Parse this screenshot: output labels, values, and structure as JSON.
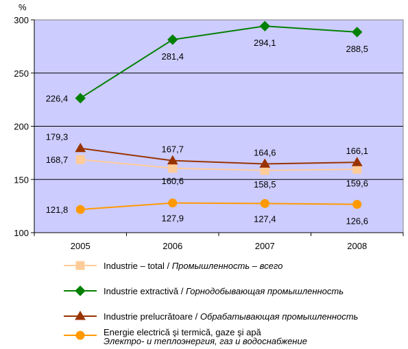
{
  "chart_data": {
    "type": "line",
    "ylabel": "%",
    "ylim": [
      100,
      300
    ],
    "yticks": [
      100,
      150,
      200,
      250,
      300
    ],
    "categories": [
      "2005",
      "2006",
      "2007",
      "2008"
    ],
    "grid": true,
    "legend_position": "bottom",
    "plot_background": "#ccccff",
    "series": [
      {
        "name_ro": "Industrie – total / ",
        "name_ru": "Промышленность – всего",
        "values": [
          168.7,
          160.6,
          158.5,
          159.6
        ],
        "labels": [
          "168,7",
          "160,6",
          "158,5",
          "159,6"
        ],
        "color": "#ffcc99",
        "marker": "square"
      },
      {
        "name_ro": "Industrie extractivă / ",
        "name_ru": "Горнодобывающая промышленность",
        "values": [
          226.4,
          281.4,
          294.1,
          288.5
        ],
        "labels": [
          "226,4",
          "281,4",
          "294,1",
          "288,5"
        ],
        "color": "#008000",
        "marker": "diamond"
      },
      {
        "name_ro": "Industrie prelucrătoare / ",
        "name_ru": "Обрабатывающая промышленность",
        "values": [
          179.3,
          167.7,
          164.6,
          166.1
        ],
        "labels": [
          "179,3",
          "167,7",
          "164,6",
          "166,1"
        ],
        "color": "#993300",
        "marker": "triangle"
      },
      {
        "name_ro": "Energie electrică şi termică, gaze şi apă",
        "name_ru": "Электро- и теплоэнергия, газ и водоснабжение",
        "values": [
          121.8,
          127.9,
          127.4,
          126.6
        ],
        "labels": [
          "121,8",
          "127,9",
          "127,4",
          "126,6"
        ],
        "color": "#ff9900",
        "marker": "circle"
      }
    ]
  }
}
